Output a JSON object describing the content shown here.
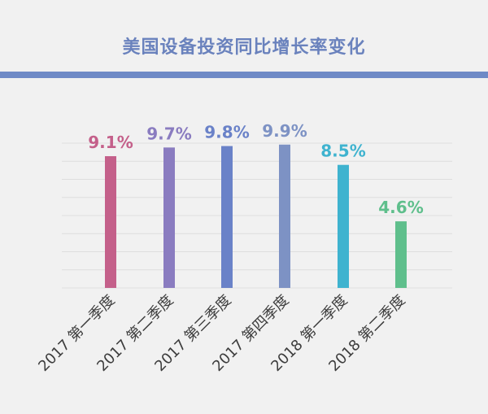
{
  "chart_data": {
    "type": "bar",
    "title": "美国设备投资同比增长率变化",
    "categories": [
      "2017 第一季度",
      "2017 第二季度",
      "2017 第三季度",
      "2017 第四季度",
      "2018 第一季度",
      "2018 第二季度"
    ],
    "values": [
      9.1,
      9.7,
      9.8,
      9.9,
      8.5,
      4.6
    ],
    "value_labels": [
      "9.1%",
      "9.7%",
      "9.8%",
      "9.9%",
      "8.5%",
      "4.6%"
    ],
    "colors": [
      "#c4608a",
      "#8a7cc0",
      "#6a82c8",
      "#7d92c4",
      "#3fb3cf",
      "#5fbf8c"
    ],
    "title_color": "#6a82bd",
    "rule_color": "#6f8ac6",
    "grid": true,
    "ylim": [
      0,
      10
    ],
    "xlabel": "",
    "ylabel": ""
  }
}
